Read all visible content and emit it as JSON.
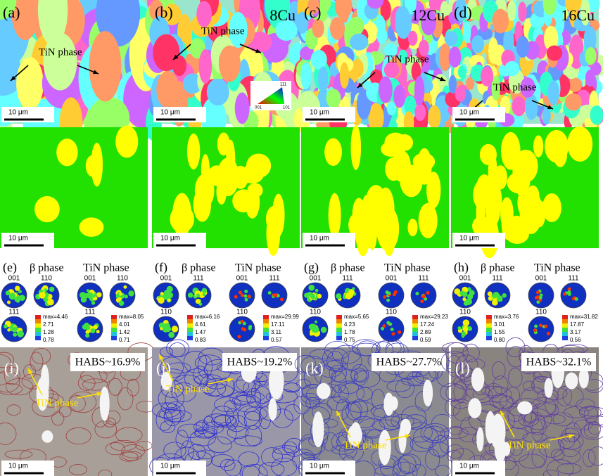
{
  "ebsd_maps": [
    {
      "label": "(a)",
      "annotation": "TiN phase",
      "scale": "10 μm"
    },
    {
      "label": "(b)",
      "composition": "8Cu",
      "annotation": "TiN phase",
      "scale": "10 μm",
      "ipf_key": [
        "111",
        "001",
        "101"
      ]
    },
    {
      "label": "(c)",
      "composition": "12Cu",
      "annotation": "TiN phase",
      "scale": "10 μm"
    },
    {
      "label": "(d)",
      "composition": "16Cu",
      "annotation": "TiN phase",
      "scale": "10 μm"
    }
  ],
  "phase_maps": [
    {
      "scale": "10 μm"
    },
    {
      "scale": "10 μm"
    },
    {
      "scale": "10 μm"
    },
    {
      "scale": "10 μm"
    }
  ],
  "pole_figures": [
    {
      "label": "(e)",
      "beta": {
        "title": "β phase",
        "poles": [
          "001",
          "110",
          "111"
        ],
        "legend": [
          "max=4.46",
          "2.71",
          "1.28",
          "0.78"
        ]
      },
      "tin": {
        "title": "TiN phase",
        "poles": [
          "001",
          "110",
          "111"
        ],
        "legend": [
          "max=8.05",
          "4.01",
          "1.42",
          "0.71"
        ]
      }
    },
    {
      "label": "(f)",
      "beta": {
        "title": "β phase",
        "poles": [
          "001",
          "111",
          "110"
        ],
        "legend": [
          "max=6.16",
          "4.61",
          "1.47",
          "0.83"
        ]
      },
      "tin": {
        "title": "TiN phase",
        "poles": [
          "001",
          "111",
          "110"
        ],
        "legend": [
          "max=29.99",
          "17.11",
          "3.11",
          "0.57"
        ]
      }
    },
    {
      "label": "(g)",
      "beta": {
        "title": "β phase",
        "poles": [
          "001",
          "111",
          "110"
        ],
        "legend": [
          "max=5.65",
          "4.23",
          "1.78",
          "0.75"
        ]
      },
      "tin": {
        "title": "TiN phase",
        "poles": [
          "001",
          "111",
          "110"
        ],
        "legend": [
          "max=29.23",
          "17.24",
          "2.89",
          "0.59"
        ]
      }
    },
    {
      "label": "(h)",
      "beta": {
        "title": "β phase",
        "poles": [
          "001",
          "111",
          "110"
        ],
        "legend": [
          "max=3.76",
          "3.01",
          "1.55",
          "0.80"
        ]
      },
      "tin": {
        "title": "TiN phase",
        "poles": [
          "001",
          "111",
          "110"
        ],
        "legend": [
          "max=31.82",
          "17.87",
          "3.17",
          "0.56"
        ]
      }
    }
  ],
  "boundary_maps": [
    {
      "label": "(i)",
      "habs": "HABS~16.9%",
      "annotation": "TiN phase",
      "scale": "10 μm"
    },
    {
      "label": "(j)",
      "habs": "HABS~19.2%",
      "annotation": "TiN phase",
      "scale": "10 μm"
    },
    {
      "label": "(k)",
      "habs": "HABS~27.7%",
      "annotation": "TiN phase",
      "scale": "10 μm"
    },
    {
      "label": "(l)",
      "habs": "HABS~32.1%",
      "annotation": "TiN phase",
      "scale": "10 μm"
    }
  ]
}
